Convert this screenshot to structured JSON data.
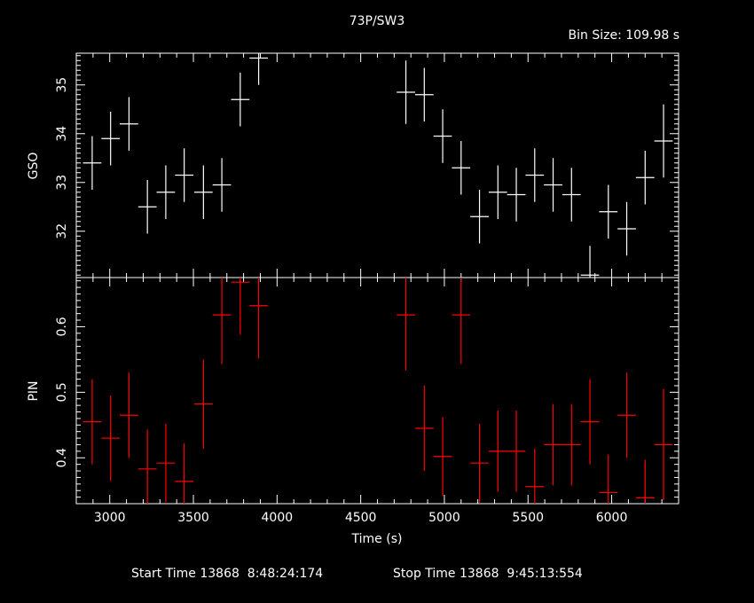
{
  "title": "73P/SW3",
  "bin_size": "Bin Size: 109.98 s",
  "footer": {
    "start": "Start Time 13868  8:48:24:174",
    "stop": "Stop Time 13868  9:45:13:554"
  },
  "colors": {
    "background": "#000000",
    "axes": "#ffffff",
    "gso": "#ffffff",
    "pin": "#ff0000"
  },
  "chart_data": [
    {
      "type": "scatter",
      "title": "73P/SW3",
      "xlabel": "Time (s)",
      "ylabel": "GSO",
      "xlim": [
        2800,
        6400
      ],
      "ylim": [
        31.05,
        35.65
      ],
      "ytick_values": [
        32,
        33,
        34,
        35
      ],
      "ytick_labels": [
        "32",
        "33",
        "34",
        "35"
      ],
      "xerr": 55,
      "series": [
        {
          "name": "GSO",
          "x": [
            2895,
            3005,
            3115,
            3225,
            3335,
            3445,
            3560,
            3670,
            3780,
            3890,
            4770,
            4880,
            4990,
            5100,
            5210,
            5320,
            5430,
            5540,
            5650,
            5760,
            5870,
            5980,
            6090,
            6200,
            6310
          ],
          "y": [
            33.4,
            33.9,
            34.2,
            32.5,
            32.8,
            33.15,
            32.8,
            32.95,
            34.7,
            35.55,
            34.85,
            34.8,
            33.95,
            33.3,
            32.3,
            32.8,
            32.75,
            33.15,
            32.95,
            32.75,
            31.1,
            32.4,
            32.05,
            33.1,
            33.85
          ],
          "yerr": [
            0.55,
            0.55,
            0.55,
            0.55,
            0.55,
            0.55,
            0.55,
            0.55,
            0.55,
            0.55,
            0.65,
            0.55,
            0.55,
            0.55,
            0.55,
            0.55,
            0.55,
            0.55,
            0.55,
            0.55,
            0.6,
            0.55,
            0.55,
            0.55,
            0.75
          ]
        }
      ]
    },
    {
      "type": "scatter",
      "xlabel": "Time (s)",
      "ylabel": "PIN",
      "xlim": [
        2800,
        6400
      ],
      "ylim": [
        0.33,
        0.675
      ],
      "ytick_values": [
        0.4,
        0.5,
        0.6
      ],
      "ytick_labels": [
        "0.4",
        "0.5",
        "0.6"
      ],
      "xtick_values": [
        3000,
        3500,
        4000,
        4500,
        5000,
        5500,
        6000
      ],
      "xtick_labels": [
        "3000",
        "3500",
        "4000",
        "4500",
        "5000",
        "5500",
        "6000"
      ],
      "xerr": 55,
      "series": [
        {
          "name": "PIN",
          "x": [
            2895,
            3005,
            3115,
            3225,
            3335,
            3445,
            3560,
            3670,
            3780,
            3890,
            4770,
            4880,
            4990,
            5100,
            5210,
            5320,
            5430,
            5540,
            5650,
            5760,
            5870,
            5980,
            6090,
            6200,
            6310
          ],
          "y": [
            0.455,
            0.43,
            0.465,
            0.383,
            0.392,
            0.364,
            0.482,
            0.618,
            0.668,
            0.632,
            0.618,
            0.445,
            0.402,
            0.618,
            0.392,
            0.41,
            0.41,
            0.356,
            0.42,
            0.42,
            0.455,
            0.347,
            0.465,
            0.339,
            0.42
          ],
          "yerr": [
            0.065,
            0.065,
            0.065,
            0.06,
            0.06,
            0.058,
            0.068,
            0.075,
            0.08,
            0.08,
            0.085,
            0.065,
            0.06,
            0.075,
            0.06,
            0.062,
            0.062,
            0.058,
            0.062,
            0.062,
            0.065,
            0.058,
            0.065,
            0.058,
            0.085
          ]
        }
      ]
    }
  ]
}
